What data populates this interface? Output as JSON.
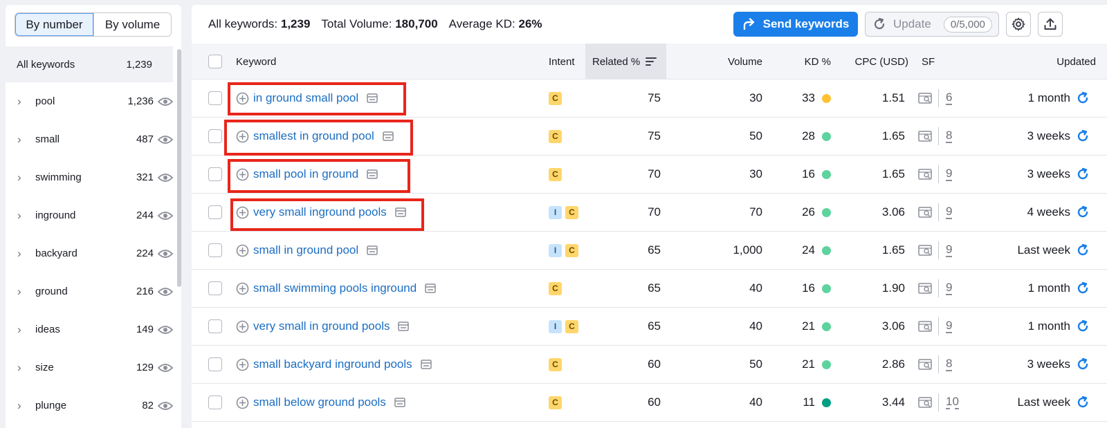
{
  "colors": {
    "accent": "#1a7fe8",
    "link": "#1b6ec2",
    "kd_yellow": "#ffc233",
    "kd_light_green": "#5dd39e",
    "kd_dark_green": "#009f81",
    "intent_commercial": "#ffd66b",
    "intent_informational": "#c7e3fb",
    "highlight_red": "#e8261a"
  },
  "sidebar": {
    "toggle": {
      "by_number": "By number",
      "by_volume": "By volume",
      "selected": "By number"
    },
    "all_keywords": {
      "label": "All keywords",
      "count": "1,239"
    },
    "groups": [
      {
        "name": "pool",
        "count": "1,236",
        "icon": "eye-icon"
      },
      {
        "name": "small",
        "count": "487",
        "icon": "eye-icon"
      },
      {
        "name": "swimming",
        "count": "321",
        "icon": "eye-icon"
      },
      {
        "name": "inground",
        "count": "244",
        "icon": "eye-icon"
      },
      {
        "name": "backyard",
        "count": "224",
        "icon": "eye-icon"
      },
      {
        "name": "ground",
        "count": "216",
        "icon": "eye-icon"
      },
      {
        "name": "ideas",
        "count": "149",
        "icon": "eye-icon"
      },
      {
        "name": "size",
        "count": "129",
        "icon": "eye-icon"
      },
      {
        "name": "plunge",
        "count": "82",
        "icon": "eye-icon"
      }
    ]
  },
  "summary": {
    "all_keywords_label": "All keywords:",
    "all_keywords_value": "1,239",
    "total_volume_label": "Total Volume:",
    "total_volume_value": "180,700",
    "avg_kd_label": "Average KD:",
    "avg_kd_value": "26%"
  },
  "toolbar": {
    "send_label": "Send keywords",
    "update_label": "Update",
    "update_quota": "0/5,000"
  },
  "table": {
    "headers": {
      "keyword": "Keyword",
      "intent": "Intent",
      "related": "Related %",
      "volume": "Volume",
      "kd": "KD %",
      "cpc": "CPC (USD)",
      "sf": "SF",
      "updated": "Updated"
    },
    "sorted_by": "Related %",
    "rows": [
      {
        "keyword": "in ground small pool",
        "intent": [
          "C"
        ],
        "related": "75",
        "volume": "30",
        "kd": "33",
        "kd_level": "yellow",
        "cpc": "1.51",
        "sf": "6",
        "updated": "1 month",
        "highlighted": true
      },
      {
        "keyword": "smallest in ground pool",
        "intent": [
          "C"
        ],
        "related": "75",
        "volume": "50",
        "kd": "28",
        "kd_level": "light-green",
        "cpc": "1.65",
        "sf": "8",
        "updated": "3 weeks",
        "highlighted": true
      },
      {
        "keyword": "small pool in ground",
        "intent": [
          "C"
        ],
        "related": "70",
        "volume": "30",
        "kd": "16",
        "kd_level": "light-green",
        "cpc": "1.65",
        "sf": "9",
        "updated": "3 weeks",
        "highlighted": true
      },
      {
        "keyword": "very small inground pools",
        "intent": [
          "I",
          "C"
        ],
        "related": "70",
        "volume": "70",
        "kd": "26",
        "kd_level": "light-green",
        "cpc": "3.06",
        "sf": "9",
        "updated": "4 weeks",
        "highlighted": true
      },
      {
        "keyword": "small in ground pool",
        "intent": [
          "I",
          "C"
        ],
        "related": "65",
        "volume": "1,000",
        "kd": "24",
        "kd_level": "light-green",
        "cpc": "1.65",
        "sf": "9",
        "updated": "Last week",
        "highlighted": false
      },
      {
        "keyword": "small swimming pools inground",
        "intent": [
          "C"
        ],
        "related": "65",
        "volume": "40",
        "kd": "16",
        "kd_level": "light-green",
        "cpc": "1.90",
        "sf": "9",
        "updated": "1 month",
        "highlighted": false
      },
      {
        "keyword": "very small in ground pools",
        "intent": [
          "I",
          "C"
        ],
        "related": "65",
        "volume": "40",
        "kd": "21",
        "kd_level": "light-green",
        "cpc": "3.06",
        "sf": "9",
        "updated": "1 month",
        "highlighted": false
      },
      {
        "keyword": "small backyard inground pools",
        "intent": [
          "C"
        ],
        "related": "60",
        "volume": "50",
        "kd": "21",
        "kd_level": "light-green",
        "cpc": "2.86",
        "sf": "8",
        "updated": "3 weeks",
        "highlighted": false
      },
      {
        "keyword": "small below ground pools",
        "intent": [
          "C"
        ],
        "related": "60",
        "volume": "40",
        "kd": "11",
        "kd_level": "dark-green",
        "cpc": "3.44",
        "sf": "10",
        "updated": "Last week",
        "highlighted": false
      }
    ]
  }
}
